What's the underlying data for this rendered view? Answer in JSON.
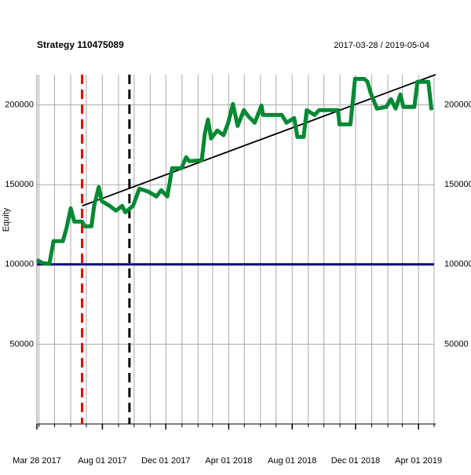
{
  "chart_data": {
    "type": "line",
    "title": "Strategy 110475089",
    "subtitle": "2017-03-28 / 2019-05-04",
    "ylabel": "Equity",
    "x": [
      "2017-03-28",
      "2017-04-09",
      "2017-04-21",
      "2017-04-29",
      "2017-05-17",
      "2017-05-24",
      "2017-06-01",
      "2017-06-08",
      "2017-06-23",
      "2017-06-28",
      "2017-07-11",
      "2017-07-16",
      "2017-07-25",
      "2017-07-31",
      "2017-08-15",
      "2017-08-27",
      "2017-09-08",
      "2017-09-14",
      "2017-09-29",
      "2017-10-11",
      "2017-10-29",
      "2017-11-13",
      "2017-11-22",
      "2017-12-04",
      "2017-12-13",
      "2017-12-31",
      "2018-01-09",
      "2018-01-15",
      "2018-02-08",
      "2018-02-14",
      "2018-02-20",
      "2018-02-26",
      "2018-03-10",
      "2018-03-22",
      "2018-03-31",
      "2018-04-09",
      "2018-04-18",
      "2018-04-30",
      "2018-05-09",
      "2018-05-21",
      "2018-06-03",
      "2018-06-06",
      "2018-07-12",
      "2018-07-21",
      "2018-08-05",
      "2018-08-11",
      "2018-08-23",
      "2018-08-29",
      "2018-09-13",
      "2018-09-22",
      "2018-10-28",
      "2018-10-31",
      "2018-11-21",
      "2018-11-30",
      "2018-12-18",
      "2018-12-24",
      "2018-12-30",
      "2019-01-11",
      "2019-01-29",
      "2019-02-07",
      "2019-02-16",
      "2019-02-25",
      "2019-03-03",
      "2019-03-24",
      "2019-03-30",
      "2019-04-20",
      "2019-04-26"
    ],
    "values": [
      102700,
      100800,
      100300,
      114600,
      114600,
      122900,
      135200,
      126800,
      126800,
      123900,
      123900,
      136700,
      148500,
      139600,
      136700,
      133700,
      136700,
      132700,
      136700,
      147500,
      145500,
      142600,
      146500,
      142600,
      160300,
      160300,
      167200,
      164700,
      165200,
      181900,
      190800,
      179000,
      183900,
      181000,
      188800,
      200600,
      186800,
      196700,
      192700,
      188800,
      199600,
      193700,
      193700,
      188800,
      191800,
      179900,
      179900,
      196700,
      193700,
      196700,
      196700,
      187800,
      187800,
      216300,
      216300,
      214400,
      207500,
      197700,
      198700,
      203600,
      197700,
      206500,
      198700,
      198700,
      214400,
      214400,
      196700
    ],
    "color": "#008833",
    "xlim": [
      "2017-03-28",
      "2019-05-04"
    ],
    "ylim": [
      0,
      219000
    ],
    "xticks": [
      {
        "value": "2017-03-28",
        "label": "Mar 28 2017"
      },
      {
        "value": "2017-08-01",
        "label": "Aug 01 2017"
      },
      {
        "value": "2017-12-01",
        "label": "Dec 01 2017"
      },
      {
        "value": "2018-04-01",
        "label": "Apr 01 2018"
      },
      {
        "value": "2018-08-01",
        "label": "Aug 01 2018"
      },
      {
        "value": "2018-12-01",
        "label": "Dec 01 2018"
      },
      {
        "value": "2019-04-01",
        "label": "Apr 01 2019"
      }
    ],
    "minor_xticks": [
      "2017-04-01",
      "2017-05-01",
      "2017-06-01",
      "2017-07-01",
      "2017-08-01",
      "2017-09-01",
      "2017-10-01",
      "2017-11-01",
      "2017-12-01",
      "2018-01-01",
      "2018-02-01",
      "2018-03-01",
      "2018-04-01",
      "2018-05-01",
      "2018-06-01",
      "2018-07-01",
      "2018-08-01",
      "2018-09-01",
      "2018-10-01",
      "2018-11-01",
      "2018-12-01",
      "2019-01-01",
      "2019-02-01",
      "2019-03-01",
      "2019-04-01",
      "2019-05-01"
    ],
    "yticks": [
      50000,
      100000,
      150000,
      200000
    ],
    "grid": true,
    "hlines": [
      {
        "value": 100000,
        "color": "#00007f"
      }
    ],
    "vlines": [
      {
        "value": "2017-06-23",
        "color": "#dd0000"
      },
      {
        "value": "2017-09-22",
        "color": "#000000"
      }
    ],
    "trend": {
      "x": [
        "2017-06-23",
        "2019-05-04"
      ],
      "values": [
        136700,
        219000
      ],
      "color": "#000000"
    }
  }
}
